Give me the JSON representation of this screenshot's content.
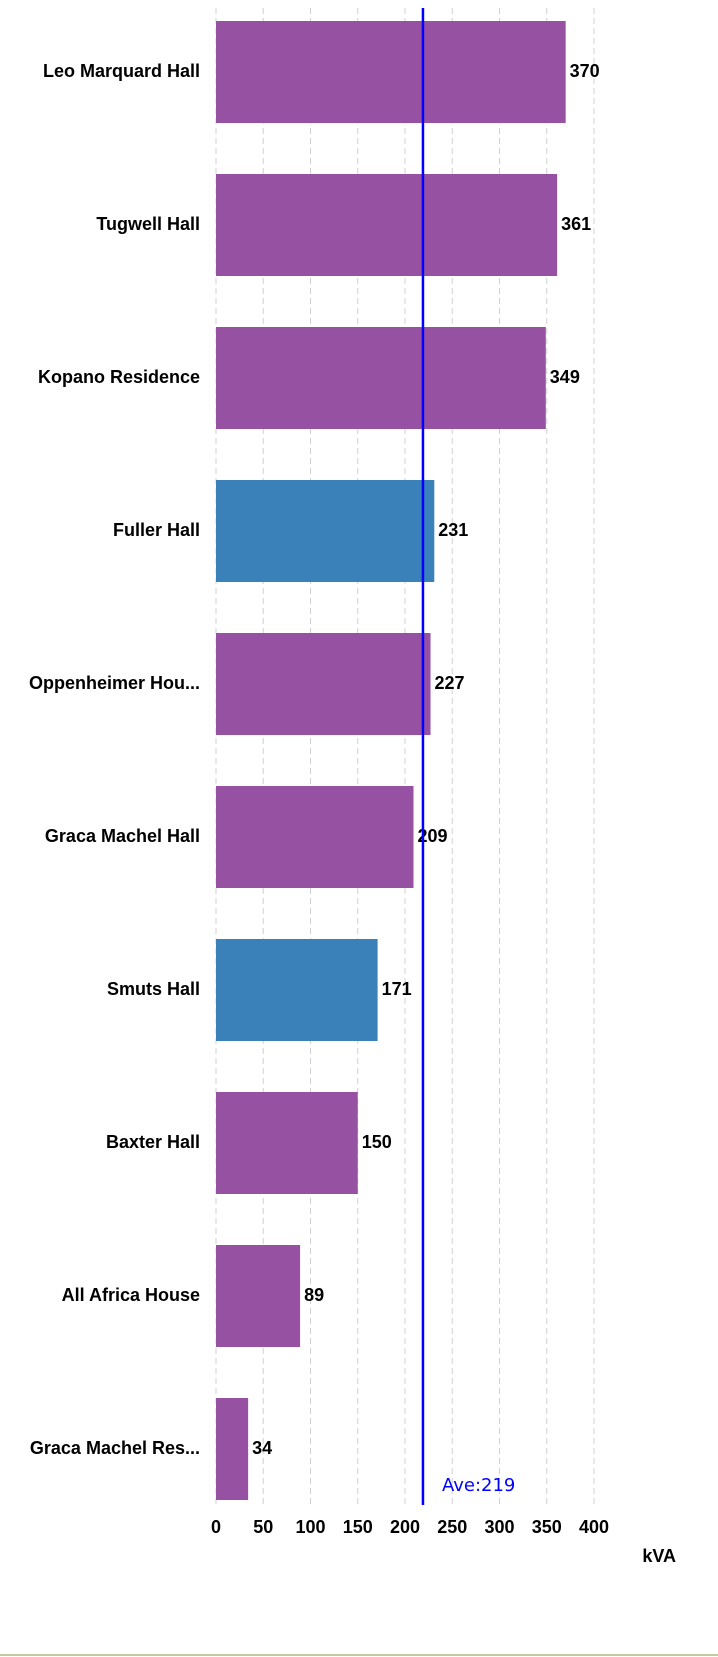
{
  "chart_data": {
    "type": "bar",
    "orientation": "horizontal",
    "categories": [
      "Leo Marquard Hall",
      "Tugwell Hall",
      "Kopano Residence",
      "Fuller Hall",
      "Oppenheimer Hou...",
      "Graca Machel Hall",
      "Smuts Hall",
      "Baxter Hall",
      "All Africa House",
      "Graca Machel Res..."
    ],
    "values": [
      370,
      361,
      349,
      231,
      227,
      209,
      171,
      150,
      89,
      34
    ],
    "colors": [
      "#9651a3",
      "#9651a3",
      "#9651a3",
      "#3a80b9",
      "#9651a3",
      "#9651a3",
      "#3a80b9",
      "#9651a3",
      "#9651a3",
      "#9651a3"
    ],
    "xlim": [
      0,
      400
    ],
    "xticks": [
      0,
      50,
      100,
      150,
      200,
      250,
      300,
      350,
      400
    ],
    "xlabel": "kVA",
    "grid": true,
    "average": {
      "value": 219,
      "label": "Ave:219",
      "color": "#0000ff"
    }
  }
}
